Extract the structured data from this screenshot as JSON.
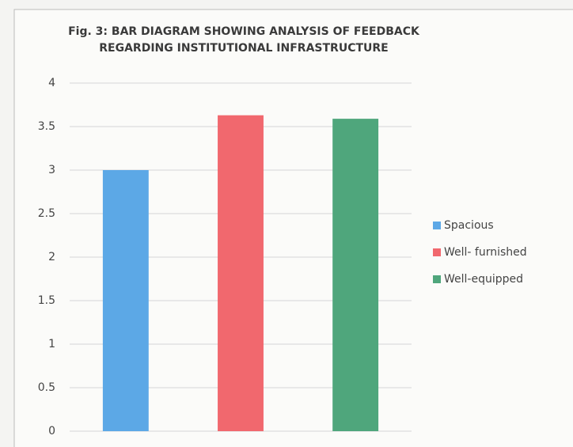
{
  "chart_data": {
    "type": "bar",
    "title": [
      "Fig. 3: BAR DIAGRAM  SHOWING ANALYSIS OF FEEDBACK",
      "REGARDING INSTITUTIONAL INFRASTRUCTURE"
    ],
    "categories": [
      null
    ],
    "series": [
      {
        "name": "Spacious",
        "color": "#5ca8e6",
        "values": [
          3.0
        ]
      },
      {
        "name": "Well- furnished",
        "color": "#f1686e",
        "values": [
          3.63
        ]
      },
      {
        "name": "Well-equipped",
        "color": "#4fa67c",
        "values": [
          3.59
        ]
      }
    ],
    "ylim": [
      0,
      4
    ],
    "yticks": [
      0,
      0.5,
      1,
      1.5,
      2,
      2.5,
      3,
      3.5,
      4
    ],
    "grid": true,
    "legend": "right"
  }
}
